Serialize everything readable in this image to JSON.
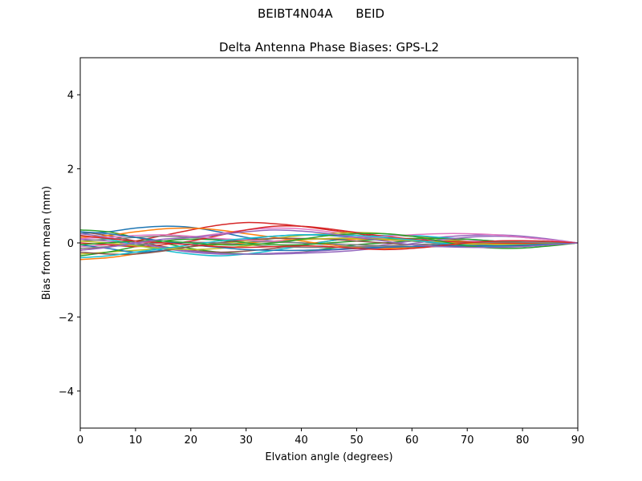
{
  "figure": {
    "suptitle": "BEIBT4N04A      BEID"
  },
  "chart_data": {
    "type": "line",
    "title": "Delta Antenna Phase Biases: GPS-L2",
    "xlabel": "Elvation angle (degrees)",
    "ylabel": "Bias from mean (mm)",
    "xlim": [
      0,
      90
    ],
    "ylim": [
      -5,
      5
    ],
    "x_ticks": [
      0,
      10,
      20,
      30,
      40,
      50,
      60,
      70,
      80,
      90
    ],
    "x_tick_labels": [
      "0",
      "10",
      "20",
      "30",
      "40",
      "50",
      "60",
      "70",
      "80",
      "90"
    ],
    "y_ticks": [
      -4,
      -2,
      0,
      2,
      4
    ],
    "y_tick_labels": [
      "−4",
      "−2",
      "0",
      "2",
      "4"
    ],
    "grid": false,
    "legend": "none",
    "x": [
      0,
      5,
      10,
      15,
      20,
      25,
      30,
      35,
      40,
      45,
      50,
      55,
      60,
      65,
      70,
      75,
      80,
      85,
      90
    ],
    "series": [
      {
        "color": "#1f77b4",
        "values": [
          0.25,
          0.3,
          0.4,
          0.45,
          0.42,
          0.3,
          0.15,
          0.05,
          0.0,
          -0.05,
          -0.1,
          -0.12,
          -0.1,
          -0.05,
          0.0,
          0.05,
          0.05,
          0.03,
          0.0
        ]
      },
      {
        "color": "#ff7f0e",
        "values": [
          -0.45,
          -0.4,
          -0.3,
          -0.2,
          -0.1,
          -0.05,
          0.0,
          0.05,
          0.1,
          0.1,
          0.1,
          0.08,
          0.05,
          0.0,
          -0.05,
          -0.08,
          -0.08,
          -0.05,
          0.0
        ]
      },
      {
        "color": "#2ca02c",
        "values": [
          0.35,
          0.3,
          0.15,
          0.0,
          -0.15,
          -0.25,
          -0.3,
          -0.3,
          -0.25,
          -0.15,
          -0.05,
          0.0,
          0.05,
          0.05,
          0.02,
          -0.02,
          -0.04,
          -0.03,
          0.0
        ]
      },
      {
        "color": "#d62728",
        "values": [
          -0.2,
          -0.1,
          0.05,
          0.2,
          0.35,
          0.48,
          0.55,
          0.52,
          0.45,
          0.35,
          0.25,
          0.15,
          0.08,
          0.03,
          0.0,
          -0.02,
          -0.03,
          -0.02,
          0.0
        ]
      },
      {
        "color": "#9467bd",
        "values": [
          0.1,
          0.05,
          -0.05,
          -0.15,
          -0.25,
          -0.3,
          -0.3,
          -0.28,
          -0.25,
          -0.2,
          -0.15,
          -0.05,
          0.05,
          0.15,
          0.2,
          0.22,
          0.18,
          0.1,
          0.0
        ]
      },
      {
        "color": "#8c564b",
        "values": [
          0.3,
          0.2,
          0.05,
          -0.1,
          -0.2,
          -0.25,
          -0.22,
          -0.15,
          -0.05,
          0.05,
          0.15,
          0.2,
          0.18,
          0.12,
          0.05,
          0.0,
          -0.03,
          -0.02,
          0.0
        ]
      },
      {
        "color": "#e377c2",
        "values": [
          -0.1,
          -0.05,
          0.0,
          0.05,
          0.15,
          0.25,
          0.35,
          0.4,
          0.38,
          0.3,
          0.2,
          0.12,
          0.08,
          0.05,
          0.05,
          0.05,
          0.04,
          0.02,
          0.0
        ]
      },
      {
        "color": "#7f7f7f",
        "values": [
          0.05,
          0.1,
          0.15,
          0.18,
          0.15,
          0.1,
          0.05,
          0.02,
          0.0,
          -0.02,
          -0.05,
          -0.08,
          -0.1,
          -0.1,
          -0.08,
          -0.05,
          -0.03,
          -0.02,
          0.0
        ]
      },
      {
        "color": "#bcbd22",
        "values": [
          -0.3,
          -0.25,
          -0.2,
          -0.15,
          -0.1,
          -0.02,
          0.05,
          0.12,
          0.2,
          0.25,
          0.28,
          0.25,
          0.18,
          0.1,
          0.03,
          -0.02,
          -0.04,
          -0.03,
          0.0
        ]
      },
      {
        "color": "#17becf",
        "values": [
          0.2,
          0.1,
          -0.05,
          -0.2,
          -0.3,
          -0.35,
          -0.3,
          -0.2,
          -0.08,
          0.05,
          0.15,
          0.2,
          0.2,
          0.15,
          0.1,
          0.05,
          0.02,
          0.01,
          0.0
        ]
      },
      {
        "color": "#1f77b4",
        "values": [
          -0.05,
          -0.15,
          -0.25,
          -0.2,
          -0.1,
          0.0,
          0.1,
          0.18,
          0.22,
          0.2,
          0.15,
          0.1,
          0.05,
          0.0,
          -0.05,
          -0.08,
          -0.07,
          -0.04,
          0.0
        ]
      },
      {
        "color": "#ff7f0e",
        "values": [
          0.15,
          0.2,
          0.3,
          0.38,
          0.4,
          0.35,
          0.25,
          0.15,
          0.05,
          -0.05,
          -0.12,
          -0.15,
          -0.12,
          -0.08,
          -0.05,
          -0.02,
          0.0,
          0.0,
          0.0
        ]
      },
      {
        "color": "#2ca02c",
        "values": [
          -0.35,
          -0.25,
          -0.1,
          0.05,
          0.1,
          0.08,
          0.0,
          -0.05,
          -0.05,
          0.0,
          0.05,
          0.1,
          0.12,
          0.12,
          0.1,
          0.05,
          0.02,
          0.01,
          0.0
        ]
      },
      {
        "color": "#d62728",
        "values": [
          0.0,
          -0.05,
          -0.1,
          -0.05,
          0.05,
          0.2,
          0.35,
          0.45,
          0.45,
          0.38,
          0.28,
          0.18,
          0.1,
          0.05,
          0.02,
          0.0,
          -0.01,
          -0.01,
          0.0
        ]
      },
      {
        "color": "#9467bd",
        "values": [
          0.25,
          0.15,
          0.0,
          -0.12,
          -0.22,
          -0.28,
          -0.3,
          -0.3,
          -0.28,
          -0.25,
          -0.2,
          -0.12,
          -0.02,
          0.08,
          0.15,
          0.18,
          0.15,
          0.08,
          0.0
        ]
      },
      {
        "color": "#8c564b",
        "values": [
          -0.25,
          -0.3,
          -0.3,
          -0.22,
          -0.1,
          0.0,
          0.08,
          0.12,
          0.12,
          0.1,
          0.05,
          0.0,
          -0.05,
          -0.08,
          -0.1,
          -0.1,
          -0.08,
          -0.04,
          0.0
        ]
      },
      {
        "color": "#e377c2",
        "values": [
          0.12,
          0.15,
          0.2,
          0.22,
          0.18,
          0.12,
          0.08,
          0.05,
          0.08,
          0.12,
          0.15,
          0.18,
          0.22,
          0.25,
          0.25,
          0.22,
          0.15,
          0.08,
          0.0
        ]
      },
      {
        "color": "#7f7f7f",
        "values": [
          -0.15,
          -0.1,
          -0.05,
          0.0,
          0.02,
          0.0,
          -0.05,
          -0.1,
          -0.12,
          -0.12,
          -0.1,
          -0.08,
          -0.05,
          -0.02,
          0.0,
          0.02,
          0.02,
          0.01,
          0.0
        ]
      },
      {
        "color": "#bcbd22",
        "values": [
          0.05,
          0.0,
          -0.08,
          -0.15,
          -0.18,
          -0.15,
          -0.08,
          0.0,
          0.08,
          0.12,
          0.12,
          0.1,
          0.06,
          0.02,
          -0.02,
          -0.04,
          -0.04,
          -0.02,
          0.0
        ]
      },
      {
        "color": "#17becf",
        "values": [
          -0.4,
          -0.35,
          -0.25,
          -0.15,
          -0.05,
          0.05,
          0.12,
          0.18,
          0.22,
          0.22,
          0.2,
          0.15,
          0.08,
          0.0,
          -0.06,
          -0.1,
          -0.1,
          -0.05,
          0.0
        ]
      },
      {
        "color": "#1f77b4",
        "values": [
          0.3,
          0.25,
          0.15,
          0.05,
          -0.05,
          -0.12,
          -0.18,
          -0.2,
          -0.2,
          -0.18,
          -0.15,
          -0.12,
          -0.1,
          -0.08,
          -0.08,
          -0.08,
          -0.06,
          -0.03,
          0.0
        ]
      },
      {
        "color": "#2ca02c",
        "values": [
          -0.05,
          0.0,
          0.05,
          0.05,
          0.0,
          -0.05,
          -0.05,
          0.0,
          0.1,
          0.2,
          0.25,
          0.25,
          0.18,
          0.05,
          -0.08,
          -0.14,
          -0.14,
          -0.08,
          0.0
        ]
      },
      {
        "color": "#d62728",
        "values": [
          0.2,
          0.12,
          0.05,
          0.0,
          -0.05,
          -0.1,
          -0.12,
          -0.1,
          -0.08,
          -0.1,
          -0.15,
          -0.18,
          -0.15,
          -0.08,
          0.0,
          0.05,
          0.06,
          0.04,
          0.0
        ]
      },
      {
        "color": "#9467bd",
        "values": [
          -0.2,
          -0.12,
          0.0,
          0.1,
          0.15,
          0.22,
          0.3,
          0.35,
          0.32,
          0.25,
          0.15,
          0.05,
          -0.05,
          -0.1,
          -0.12,
          -0.12,
          -0.1,
          -0.05,
          0.0
        ]
      }
    ]
  }
}
